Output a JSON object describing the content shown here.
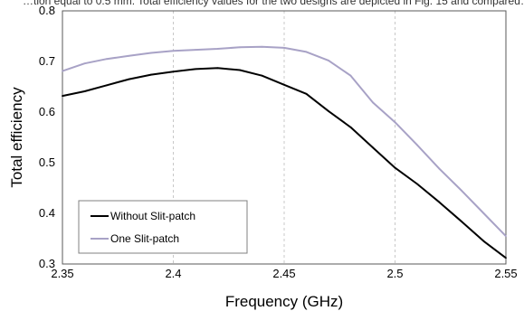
{
  "page_text": "…tion equal to 0.5 mm. Total efficiency values for the two designs are depicted in Fig. 15 and compared…",
  "chart_data": {
    "type": "line",
    "title": "",
    "xlabel": "Frequency (GHz)",
    "ylabel": "Total efficiency",
    "xlim": [
      2.35,
      2.55
    ],
    "ylim": [
      0.3,
      0.8
    ],
    "x_ticks": [
      "2.35",
      "2.4",
      "2.45",
      "2.5",
      "2.55"
    ],
    "y_ticks": [
      "0.3",
      "0.4",
      "0.5",
      "0.6",
      "0.7",
      "0.8"
    ],
    "grid": "vertical",
    "legend_position": "bottom-left",
    "series": [
      {
        "name": "Without Slit-patch",
        "color": "#000000",
        "x": [
          2.35,
          2.36,
          2.37,
          2.38,
          2.39,
          2.4,
          2.41,
          2.42,
          2.43,
          2.44,
          2.45,
          2.46,
          2.47,
          2.48,
          2.49,
          2.5,
          2.51,
          2.52,
          2.53,
          2.54,
          2.55
        ],
        "y": [
          0.632,
          0.641,
          0.653,
          0.665,
          0.674,
          0.68,
          0.685,
          0.687,
          0.683,
          0.672,
          0.654,
          0.636,
          0.602,
          0.57,
          0.53,
          0.49,
          0.458,
          0.422,
          0.384,
          0.345,
          0.312
        ]
      },
      {
        "name": "One Slit-patch",
        "color": "#a8a2c6",
        "x": [
          2.35,
          2.36,
          2.37,
          2.38,
          2.39,
          2.4,
          2.41,
          2.42,
          2.43,
          2.44,
          2.45,
          2.46,
          2.47,
          2.48,
          2.49,
          2.5,
          2.51,
          2.52,
          2.53,
          2.54,
          2.55
        ],
        "y": [
          0.681,
          0.696,
          0.705,
          0.711,
          0.717,
          0.721,
          0.723,
          0.725,
          0.728,
          0.729,
          0.727,
          0.719,
          0.702,
          0.672,
          0.619,
          0.58,
          0.535,
          0.488,
          0.445,
          0.4,
          0.355
        ]
      }
    ]
  }
}
